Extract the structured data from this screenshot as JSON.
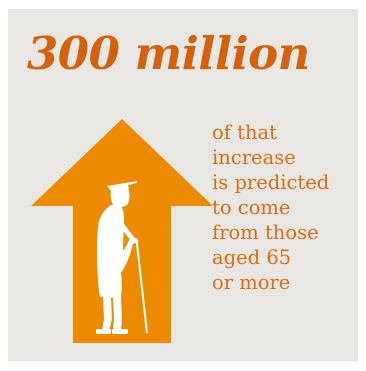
{
  "colors": {
    "background": "#e9e7e3",
    "accent_orange": "#ec8a00",
    "headline_orange": "#d4620c",
    "caption_orange": "#e06b10",
    "figure_white": "#ffffff"
  },
  "headline": "300 million",
  "caption_lines": [
    "of that",
    "increase",
    "is predicted",
    "to come",
    "from those",
    "aged 65",
    "or more"
  ],
  "icons": {
    "arrow": "up-arrow-icon",
    "figure": "elderly-person-with-cane-icon"
  }
}
